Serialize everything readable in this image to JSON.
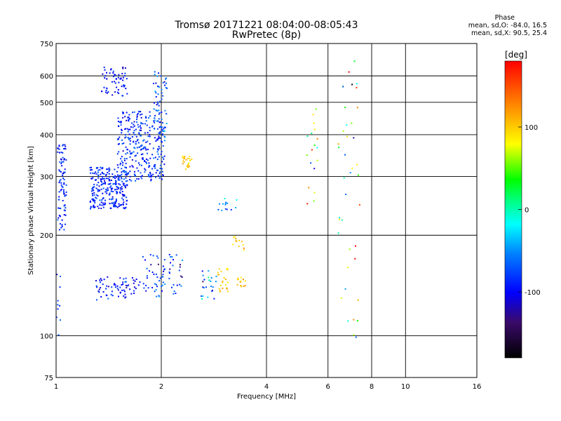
{
  "header": {
    "title_line1": "Tromsø 20171221 08:04:00-08:05:43",
    "title_line2": "RwPretec (8p)"
  },
  "phase_stats": {
    "title": "Phase",
    "line_o": "mean, sd,O: -84.0, 16.5",
    "line_x": "mean, sd,X:  90.5, 25.4"
  },
  "colorbar": {
    "label": "[deg]",
    "ticks": [
      "100",
      "0",
      "-100"
    ],
    "tick_values": [
      100,
      0,
      -100
    ],
    "range": [
      -180,
      180
    ]
  },
  "chart_data": {
    "type": "scatter",
    "xlabel": "Frequency [MHz]",
    "ylabel": "Stationary phase Virtual Height [km]",
    "x_scale": "log",
    "y_scale": "log",
    "xlim": [
      1,
      16
    ],
    "ylim": [
      75,
      750
    ],
    "x_ticks": [
      1,
      2,
      4,
      6,
      8,
      10,
      16
    ],
    "x_tick_labels": [
      "1",
      "2",
      "4",
      "6",
      "8",
      "10",
      "16"
    ],
    "y_ticks": [
      75,
      100,
      200,
      300,
      400,
      500,
      600,
      750
    ],
    "y_tick_labels": [
      "75",
      "100",
      "200",
      "300",
      "400",
      "500",
      "600",
      "750"
    ],
    "grid": true,
    "clusters": [
      {
        "x_range": [
          1.01,
          1.07
        ],
        "y_range": [
          205,
          380
        ],
        "phase_mean": -90,
        "phase_sd": 15,
        "count": 90
      },
      {
        "x_range": [
          1.25,
          1.6
        ],
        "y_range": [
          240,
          320
        ],
        "phase_mean": -90,
        "phase_sd": 12,
        "count": 260
      },
      {
        "x_range": [
          1.5,
          2.05
        ],
        "y_range": [
          290,
          470
        ],
        "phase_mean": -85,
        "phase_sd": 15,
        "count": 320
      },
      {
        "x_range": [
          1.35,
          1.6
        ],
        "y_range": [
          520,
          640
        ],
        "phase_mean": -95,
        "phase_sd": 12,
        "count": 60
      },
      {
        "x_range": [
          1.9,
          2.08
        ],
        "y_range": [
          380,
          620
        ],
        "phase_mean": -75,
        "phase_sd": 20,
        "count": 60
      },
      {
        "x_range": [
          1.3,
          1.75
        ],
        "y_range": [
          128,
          150
        ],
        "phase_mean": -95,
        "phase_sd": 15,
        "count": 70
      },
      {
        "x_range": [
          1.75,
          2.3
        ],
        "y_range": [
          130,
          175
        ],
        "phase_mean": -80,
        "phase_sd": 25,
        "count": 70
      },
      {
        "x_range": [
          2.3,
          2.45
        ],
        "y_range": [
          315,
          345
        ],
        "phase_mean": 100,
        "phase_sd": 10,
        "count": 25
      },
      {
        "x_range": [
          2.6,
          2.9
        ],
        "y_range": [
          128,
          160
        ],
        "phase_mean": -60,
        "phase_sd": 30,
        "count": 25
      },
      {
        "x_range": [
          2.9,
          3.1
        ],
        "y_range": [
          135,
          160
        ],
        "phase_mean": 100,
        "phase_sd": 10,
        "count": 22
      },
      {
        "x_range": [
          3.3,
          3.5
        ],
        "y_range": [
          140,
          150
        ],
        "phase_mean": 100,
        "phase_sd": 10,
        "count": 14
      },
      {
        "x_range": [
          3.2,
          3.45
        ],
        "y_range": [
          180,
          198
        ],
        "phase_mean": 100,
        "phase_sd": 15,
        "count": 12
      },
      {
        "x_range": [
          2.9,
          3.3
        ],
        "y_range": [
          235,
          260
        ],
        "phase_mean": -60,
        "phase_sd": 25,
        "count": 14
      },
      {
        "x_range": [
          6.4,
          7.4
        ],
        "y_range": [
          95,
          680
        ],
        "phase_mean": 30,
        "phase_sd": 90,
        "count": 40
      },
      {
        "x_range": [
          5.2,
          5.6
        ],
        "y_range": [
          230,
          500
        ],
        "phase_mean": 60,
        "phase_sd": 70,
        "count": 18
      },
      {
        "x_range": [
          1.0,
          1.03
        ],
        "y_range": [
          98,
          160
        ],
        "phase_mean": -85,
        "phase_sd": 15,
        "count": 10
      }
    ]
  }
}
